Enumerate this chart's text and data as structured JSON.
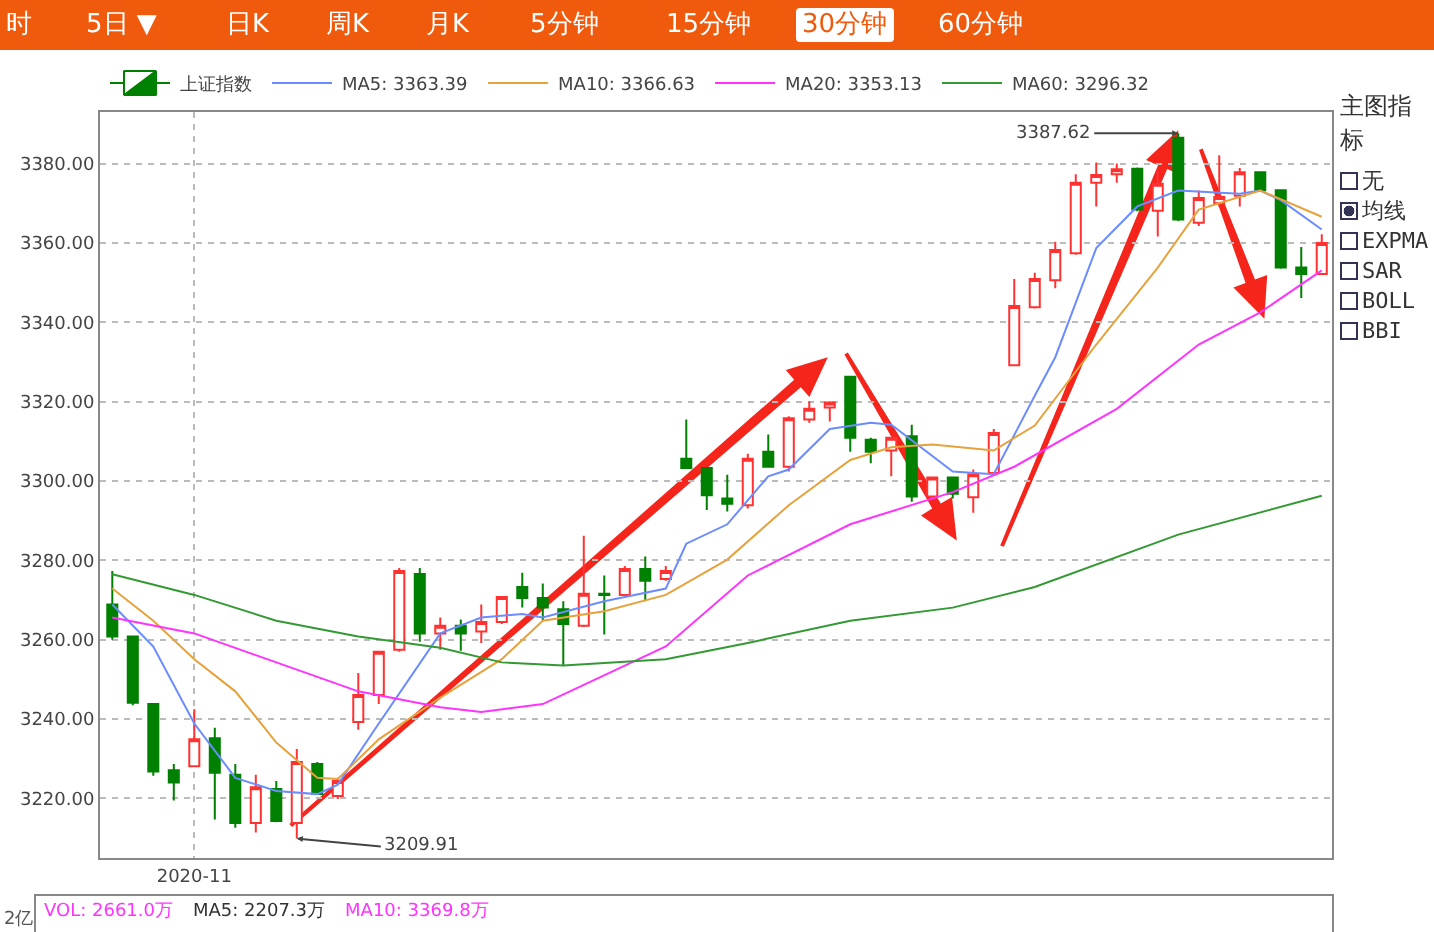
{
  "chart_data": {
    "type": "candlestick",
    "grid": true,
    "legend": "top left",
    "marker": "none",
    "line_style": "solid",
    "categories": [
      null,
      null,
      null,
      null,
      "2020-11",
      null,
      null,
      null,
      null,
      null,
      null,
      null,
      null,
      null,
      null,
      null,
      null,
      null,
      null,
      null,
      null,
      null,
      null,
      null,
      null,
      null,
      null,
      null,
      null,
      null,
      null,
      null,
      null,
      null,
      null,
      null,
      null,
      null,
      null,
      null,
      null,
      null,
      null,
      null,
      null,
      null,
      null,
      null,
      null,
      null,
      null,
      null,
      null,
      null,
      null,
      null,
      null,
      null,
      null,
      null
    ],
    "ylim": [
      3205,
      3393
    ],
    "yticks": [
      {
        "value": 3220,
        "label": "3220.00"
      },
      {
        "value": 3240,
        "label": "3240.00"
      },
      {
        "value": 3260,
        "label": "3260.00"
      },
      {
        "value": 3280,
        "label": "3280.00"
      },
      {
        "value": 3300,
        "label": "3300.00"
      },
      {
        "value": 3320,
        "label": "3320.00"
      },
      {
        "value": 3340,
        "label": "3340.00"
      },
      {
        "value": 3360,
        "label": "3360.00"
      },
      {
        "value": 3380,
        "label": "3380.00"
      }
    ],
    "series": [
      {
        "name": "上证指数",
        "ohlc": [
          [
            3268.9,
            3277.3,
            3260.0,
            3260.8
          ],
          [
            3260.8,
            3261.0,
            3243.5,
            3244.1
          ],
          [
            3243.8,
            3244.0,
            3225.7,
            3226.8
          ],
          [
            3227.1,
            3228.7,
            3219.5,
            3224.0
          ],
          [
            3228.1,
            3242.5,
            3228.0,
            3234.9
          ],
          [
            3235.2,
            3237.8,
            3214.7,
            3226.5
          ],
          [
            3226.0,
            3228.7,
            3212.6,
            3213.8
          ],
          [
            3213.8,
            3226.0,
            3211.4,
            3222.8
          ],
          [
            3222.4,
            3224.4,
            3214.0,
            3214.3
          ],
          [
            3213.8,
            3232.5,
            3209.91,
            3229.2
          ],
          [
            3228.7,
            3229.2,
            3221.0,
            3221.1
          ],
          [
            3220.6,
            3225.2,
            3219.9,
            3224.4
          ],
          [
            3239.3,
            3251.6,
            3237.3,
            3246.1
          ],
          [
            3246.1,
            3257.2,
            3243.8,
            3257.0
          ],
          [
            3257.5,
            3278.1,
            3257.0,
            3277.3
          ],
          [
            3276.6,
            3278.1,
            3259.5,
            3261.6
          ],
          [
            3261.6,
            3265.6,
            3257.5,
            3263.5
          ],
          [
            3263.5,
            3265.1,
            3257.2,
            3261.6
          ],
          [
            3262.1,
            3268.9,
            3259.2,
            3264.5
          ],
          [
            3264.5,
            3271.0,
            3264.0,
            3270.8
          ],
          [
            3273.3,
            3276.9,
            3268.1,
            3270.5
          ],
          [
            3270.5,
            3274.2,
            3264.8,
            3268.1
          ],
          [
            3267.7,
            3269.7,
            3253.5,
            3264.0
          ],
          [
            3263.5,
            3286.2,
            3263.2,
            3271.6
          ],
          [
            3271.6,
            3276.2,
            3261.3,
            3271.3
          ],
          [
            3271.3,
            3278.6,
            3271.0,
            3277.8
          ],
          [
            3277.8,
            3281.0,
            3269.7,
            3274.9
          ],
          [
            3275.3,
            3278.6,
            3274.9,
            3277.3
          ],
          [
            3305.6,
            3315.5,
            3303.3,
            3303.3
          ],
          [
            3303.3,
            3303.5,
            3292.7,
            3296.4
          ],
          [
            3295.6,
            3301.6,
            3292.3,
            3294.3
          ],
          [
            3293.9,
            3306.9,
            3293.1,
            3305.6
          ],
          [
            3307.4,
            3311.7,
            3303.5,
            3303.6
          ],
          [
            3303.6,
            3316.3,
            3302.4,
            3315.8
          ],
          [
            3315.5,
            3320.1,
            3314.7,
            3318.2
          ],
          [
            3318.5,
            3320.1,
            3315.0,
            3319.8
          ],
          [
            3326.3,
            3326.5,
            3307.4,
            3310.9
          ],
          [
            3310.4,
            3310.9,
            3304.5,
            3307.4
          ],
          [
            3307.7,
            3311.0,
            3301.2,
            3310.9
          ],
          [
            3311.3,
            3314.2,
            3294.8,
            3296.1
          ],
          [
            3296.1,
            3301.0,
            3296.0,
            3300.9
          ],
          [
            3300.9,
            3301.0,
            3295.6,
            3296.8
          ],
          [
            3295.9,
            3302.9,
            3292.0,
            3301.7
          ],
          [
            3302.0,
            3313.1,
            3302.0,
            3312.1
          ],
          [
            3329.2,
            3350.9,
            3329.0,
            3344.1
          ],
          [
            3343.8,
            3352.5,
            3343.5,
            3350.9
          ],
          [
            3350.6,
            3360.3,
            3348.6,
            3358.2
          ],
          [
            3357.4,
            3377.3,
            3357.0,
            3375.2
          ],
          [
            3375.2,
            3380.3,
            3369.2,
            3377.1
          ],
          [
            3377.3,
            3380.0,
            3375.2,
            3378.6
          ],
          [
            3378.7,
            3379.0,
            3368.0,
            3368.4
          ],
          [
            3368.1,
            3378.1,
            3361.6,
            3374.9
          ],
          [
            3386.5,
            3387.62,
            3365.5,
            3365.9
          ],
          [
            3365.1,
            3373.2,
            3364.3,
            3371.3
          ],
          [
            3370.0,
            3382.1,
            3369.2,
            3371.6
          ],
          [
            3371.9,
            3378.9,
            3369.2,
            3377.8
          ],
          [
            3377.8,
            3378.0,
            3373.0,
            3373.3
          ],
          [
            3373.3,
            3373.5,
            3353.5,
            3353.8
          ],
          [
            3353.8,
            3359.0,
            3346.1,
            3352.2
          ],
          [
            3352.2,
            3362.2,
            3352.0,
            3360.0
          ]
        ],
        "colors": [
          "#008000",
          "#008000",
          "#008000",
          "#008000",
          "#ff3232",
          "#008000",
          "#008000",
          "#ff3232",
          "#008000",
          "#ff3232",
          "#008000",
          "#ff3232",
          "#ff3232",
          "#ff3232",
          "#ff3232",
          "#008000",
          "#ff3232",
          "#008000",
          "#ff3232",
          "#ff3232",
          "#008000",
          "#008000",
          "#008000",
          "#ff3232",
          "#008000",
          "#ff3232",
          "#008000",
          "#ff3232",
          "#008000",
          "#008000",
          "#008000",
          "#ff3232",
          "#008000",
          "#ff3232",
          "#ff3232",
          "#ff3232",
          "#008000",
          "#008000",
          "#ff3232",
          "#008000",
          "#ff3232",
          "#008000",
          "#ff3232",
          "#ff3232",
          "#ff3232",
          "#ff3232",
          "#ff3232",
          "#ff3232",
          "#ff3232",
          "#ff3232",
          "#008000",
          "#ff3232",
          "#008000",
          "#ff3232",
          "#ff3232",
          "#ff3232",
          "#008000",
          "#008000",
          "#008000",
          "#ff3232"
        ]
      },
      {
        "name": "MA5: 3363.39",
        "type": "line",
        "color": "#6b8cff",
        "values": [
          3268.9,
          null,
          3258.3,
          null,
          3238.9,
          null,
          3225.2,
          null,
          3221.9,
          null,
          3221.1,
          3223.5,
          null,
          3238.9,
          null,
          null,
          3261.6,
          null,
          3265.6,
          null,
          3266.5,
          3265.6,
          null,
          null,
          3269.7,
          null,
          null,
          3272.9,
          3284.2,
          null,
          3289.1,
          null,
          3301.2,
          3302.9,
          null,
          3313.1,
          null,
          3314.7,
          3314.2,
          null,
          null,
          3302.4,
          null,
          3301.7,
          null,
          3321.5,
          3331.2,
          null,
          3358.7,
          null,
          3369.2,
          null,
          3373.2,
          null,
          null,
          3372.4,
          3373.2,
          3370.8,
          null,
          3363.4
        ]
      },
      {
        "name": "MA10: 3366.63",
        "type": "line",
        "color": "#e6a23c",
        "values": [
          3272.9,
          null,
          3264.8,
          null,
          3255.1,
          null,
          3247.0,
          null,
          3234.1,
          null,
          3225.2,
          3224.9,
          null,
          3234.9,
          null,
          null,
          3245.4,
          null,
          null,
          3255.1,
          null,
          3264.8,
          null,
          null,
          3267.2,
          null,
          null,
          3271.3,
          null,
          null,
          3280.2,
          null,
          null,
          3293.9,
          null,
          null,
          3305.3,
          null,
          3308.5,
          null,
          3309.2,
          null,
          null,
          3307.7,
          null,
          3314.0,
          null,
          null,
          3334.4,
          null,
          null,
          3353.8,
          null,
          3368.4,
          null,
          null,
          3373.2,
          null,
          null,
          3366.6
        ]
      },
      {
        "name": "MA20: 3353.13",
        "type": "line",
        "color": "#ff33ff",
        "values": [
          3265.6,
          null,
          null,
          null,
          3261.6,
          null,
          null,
          null,
          3254.3,
          null,
          null,
          null,
          3247.0,
          null,
          null,
          null,
          3243.0,
          null,
          3241.8,
          null,
          null,
          3243.8,
          null,
          null,
          null,
          null,
          null,
          3258.3,
          null,
          null,
          null,
          3276.2,
          null,
          null,
          null,
          null,
          3289.1,
          null,
          null,
          null,
          null,
          3297.2,
          null,
          null,
          3303.6,
          null,
          null,
          null,
          null,
          3318.2,
          null,
          null,
          null,
          3334.4,
          null,
          null,
          3342.5,
          null,
          null,
          3353.1
        ]
      },
      {
        "name": "MA60: 3296.32",
        "type": "line",
        "color": "#339933",
        "values": [
          3276.5,
          null,
          null,
          null,
          3271.3,
          null,
          null,
          null,
          3264.8,
          null,
          null,
          null,
          3260.8,
          null,
          null,
          null,
          3258.0,
          null,
          null,
          3254.3,
          null,
          null,
          3253.5,
          null,
          null,
          null,
          null,
          3255.1,
          null,
          null,
          null,
          3259.2,
          null,
          null,
          null,
          null,
          3264.8,
          null,
          null,
          null,
          null,
          3268.1,
          null,
          null,
          null,
          3273.3,
          null,
          null,
          null,
          null,
          null,
          null,
          3286.5,
          null,
          null,
          null,
          null,
          null,
          null,
          3296.3
        ]
      }
    ],
    "annotations": [
      "时",
      "5日 ▼",
      "日K",
      "周K",
      "月K",
      "5分钟",
      "15分钟",
      "30分钟",
      "60分钟",
      "主图指标",
      "无",
      "均线",
      "EXPMA",
      "SAR",
      "BOLL",
      "BBI",
      "VOL: 2661.0万",
      "MA5: 2207.3万",
      "MA10: 3369.8万",
      "2亿",
      "3387.62",
      "3209.91"
    ]
  }
}
